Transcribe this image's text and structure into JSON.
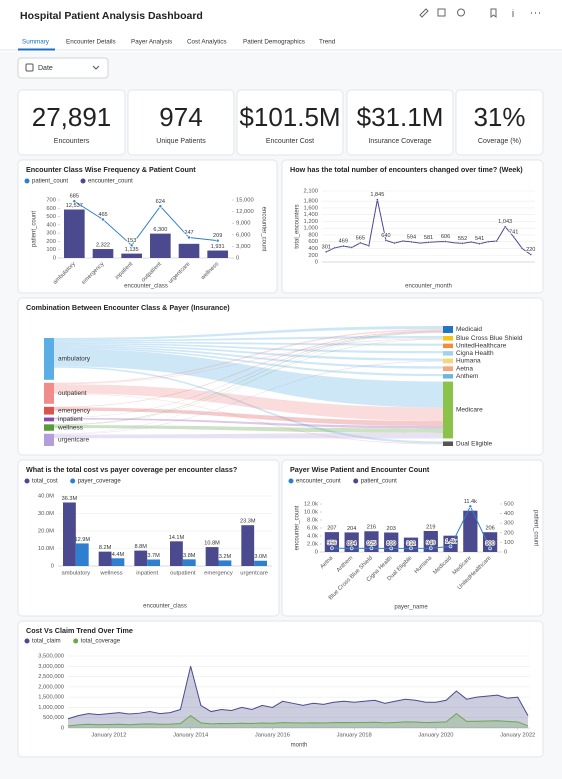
{
  "header": {
    "title": "Hospital Patient Analysis Dashboard"
  },
  "tabs": [
    "Summary",
    "Encounter Details",
    "Payer Analysis",
    "Cost Analytics",
    "Patient Demographics",
    "Trend"
  ],
  "filter": {
    "label": "Date"
  },
  "kpis": [
    {
      "value": "27,891",
      "label": "Encounters"
    },
    {
      "value": "974",
      "label": "Unique Patients"
    },
    {
      "value": "$101.5M",
      "label": "Encounter Cost"
    },
    {
      "value": "$31.1M",
      "label": "Insurance Coverage"
    },
    {
      "value": "31%",
      "label": "Coverage (%)"
    }
  ],
  "chart_data": [
    {
      "type": "bar",
      "title": "Encounter Class Wise Frequency & Patient Count",
      "categories": [
        "ambulatory",
        "emergency",
        "inpatient",
        "outpatient",
        "urgentcare",
        "wellness"
      ],
      "series": [
        {
          "name": "patient_count",
          "type": "line",
          "color": "#2f7fd0",
          "values": [
            685,
            465,
            153,
            624,
            247,
            209
          ],
          "value_labels": [
            "685",
            "465",
            "153",
            "624",
            "247",
            "209"
          ]
        },
        {
          "name": "encounter_count",
          "axis": "y2",
          "color": "#4b4a8f",
          "values": [
            12537,
            2322,
            1135,
            6300,
            3666,
            1931
          ],
          "value_labels": [
            "12,537",
            "2,322",
            "1,135",
            "6,300",
            null,
            "1,931"
          ]
        }
      ],
      "ylim": [
        0,
        700
      ],
      "yticks": [
        0,
        100,
        200,
        300,
        400,
        500,
        600,
        700
      ],
      "y2lim": [
        0,
        15000
      ],
      "y2ticks": [
        0,
        {
          "value": 3000,
          "label": "3,000"
        },
        {
          "value": 6000,
          "label": "6,000"
        },
        {
          "value": 9000,
          "label": "9,000"
        },
        {
          "value": 12000,
          "label": "12,000"
        },
        {
          "value": 15000,
          "label": "15,000"
        }
      ],
      "x_label": "encounter_class",
      "y_label": "patient_count",
      "y2_label": "encounter_count",
      "grid": false
    },
    {
      "type": "line",
      "title": "How has the total number of encounters changed over time? (Week)",
      "categories": [
        null,
        null,
        null,
        null,
        null,
        null,
        null,
        null,
        null,
        null,
        null,
        null,
        null,
        null,
        null,
        null,
        null,
        null,
        null,
        null,
        null,
        null,
        null,
        null,
        null
      ],
      "series": [
        {
          "name": "total_encounters",
          "color": "#4b4a8f",
          "values": [
            301,
            420,
            469,
            430,
            565,
            480,
            1845,
            640,
            560,
            620,
            594,
            560,
            581,
            600,
            606,
            570,
            552,
            590,
            541,
            600,
            620,
            1043,
            741,
            400,
            220
          ],
          "value_labels": [
            "301",
            null,
            "469",
            null,
            "565",
            null,
            "1,845",
            "640",
            null,
            null,
            "594",
            null,
            "581",
            null,
            "606",
            null,
            "552",
            null,
            "541",
            null,
            null,
            "1,043",
            "741",
            null,
            "220"
          ]
        }
      ],
      "ylim": [
        0,
        2100
      ],
      "yticks": [
        0,
        200,
        400,
        600,
        800,
        {
          "value": 1000,
          "label": "1,000"
        },
        {
          "value": 1200,
          "label": "1,200"
        },
        {
          "value": 1400,
          "label": "1,400"
        },
        {
          "value": 1600,
          "label": "1,600"
        },
        {
          "value": 1800,
          "label": "1,800"
        },
        {
          "value": 2100,
          "label": "2,100"
        }
      ],
      "x_label": "encounter_month",
      "y_label": "total_encounters",
      "grid": true
    },
    {
      "type": "sankey",
      "title": "Combination Between Encounter Class & Payer (Insurance)",
      "sources": [
        {
          "name": "ambulatory",
          "value": 12537,
          "color": "#5aaee3"
        },
        {
          "name": "outpatient",
          "value": 6300,
          "color": "#f08c8c"
        },
        {
          "name": "emergency",
          "value": 2322,
          "color": "#d9534f"
        },
        {
          "name": "inpatient",
          "value": 1135,
          "color": "#8e44ad"
        },
        {
          "name": "wellness",
          "value": 1931,
          "color": "#5a9a3a"
        },
        {
          "name": "urgentcare",
          "value": 3666,
          "color": "#b39ddb"
        }
      ],
      "targets": [
        {
          "name": "Medicaid",
          "value": 1400,
          "color": "#1f77c4"
        },
        {
          "name": "Blue Cross Blue Shield",
          "value": 925,
          "color": "#f5c518"
        },
        {
          "name": "UnitedHealthcare",
          "value": 900,
          "color": "#f08c3c"
        },
        {
          "name": "Cigna Health",
          "value": 899,
          "color": "#9fd4e8"
        },
        {
          "name": "Humana",
          "value": 949,
          "color": "#f7d774"
        },
        {
          "name": "Aetna",
          "value": 956,
          "color": "#f4a582"
        },
        {
          "name": "Anthem",
          "value": 894,
          "color": "#6bb8d6"
        },
        {
          "name": "Medicare",
          "value": 11400,
          "color": "#8bc34a"
        },
        {
          "name": "Dual Eligible",
          "value": 912,
          "color": "#555555"
        }
      ],
      "links": [
        {
          "source": "ambulatory",
          "target": "Medicaid",
          "value": 600
        },
        {
          "source": "ambulatory",
          "target": "Blue Cross Blue Shield",
          "value": 450
        },
        {
          "source": "ambulatory",
          "target": "UnitedHealthcare",
          "value": 430
        },
        {
          "source": "ambulatory",
          "target": "Cigna Health",
          "value": 440
        },
        {
          "source": "ambulatory",
          "target": "Humana",
          "value": 460
        },
        {
          "source": "ambulatory",
          "target": "Aetna",
          "value": 470
        },
        {
          "source": "ambulatory",
          "target": "Anthem",
          "value": 430
        },
        {
          "source": "ambulatory",
          "target": "Medicare",
          "value": 5200
        },
        {
          "source": "ambulatory",
          "target": "Dual Eligible",
          "value": 440
        },
        {
          "source": "outpatient",
          "target": "Medicaid",
          "value": 300
        },
        {
          "source": "outpatient",
          "target": "Blue Cross Blue Shield",
          "value": 150
        },
        {
          "source": "outpatient",
          "target": "Medicare",
          "value": 2700
        },
        {
          "source": "outpatient",
          "target": "Dual Eligible",
          "value": 150
        },
        {
          "source": "emergency",
          "target": "Medicaid",
          "value": 150
        },
        {
          "source": "emergency",
          "target": "Medicare",
          "value": 1000
        },
        {
          "source": "inpatient",
          "target": "Medicaid",
          "value": 100
        },
        {
          "source": "inpatient",
          "target": "Medicare",
          "value": 500
        },
        {
          "source": "wellness",
          "target": "Medicaid",
          "value": 150
        },
        {
          "source": "wellness",
          "target": "Blue Cross Blue Shield",
          "value": 100
        },
        {
          "source": "wellness",
          "target": "Medicare",
          "value": 900
        },
        {
          "source": "urgentcare",
          "target": "Medicaid",
          "value": 100
        },
        {
          "source": "urgentcare",
          "target": "Humana",
          "value": 150
        },
        {
          "source": "urgentcare",
          "target": "Medicare",
          "value": 1100
        }
      ]
    },
    {
      "type": "bar",
      "title": "What is the total cost vs payer coverage per encounter class?",
      "categories": [
        "ambulatory",
        "wellness",
        "inpatient",
        "outpatient",
        "emergency",
        "urgentcare"
      ],
      "series": [
        {
          "name": "total_cost",
          "color": "#4b4a8f",
          "values": [
            36300000,
            8200000,
            8800000,
            14100000,
            10800000,
            23300000
          ],
          "value_labels": [
            "36.3M",
            "8.2M",
            "8.8M",
            "14.1M",
            "10.8M",
            "23.3M"
          ]
        },
        {
          "name": "payer_coverage",
          "color": "#2f7fd0",
          "values": [
            12900000,
            4400000,
            3700000,
            3800000,
            3200000,
            3000000
          ],
          "value_labels": [
            "12.9M",
            "4.4M",
            "3.7M",
            "3.8M",
            "3.2M",
            "3.0M"
          ]
        }
      ],
      "ylim": [
        0,
        40000000
      ],
      "yticks": [
        0,
        {
          "value": 10000000,
          "label": "10.0M"
        },
        {
          "value": 20000000,
          "label": "20.0M"
        },
        {
          "value": 30000000,
          "label": "30.0M"
        },
        {
          "value": 40000000,
          "label": "40.0M"
        }
      ],
      "x_label": "encounter_class",
      "grid": true
    },
    {
      "type": "bar",
      "title": "Payer Wise Patient and Encounter Count",
      "categories": [
        "Aetna",
        "Anthem",
        "Blue Cross Blue Shield",
        "Cigna Health",
        "Dual Eligible",
        "Humana",
        "Medicaid",
        "Medicare",
        "UnitedHealthcare"
      ],
      "series": [
        {
          "name": "encounter_count",
          "type": "line",
          "color": "#2f7fd0",
          "values": [
            956,
            894,
            925,
            899,
            912,
            949,
            1400,
            11400,
            900
          ],
          "value_labels": [
            "956",
            "894",
            "925",
            "899",
            "912",
            "949",
            "1.4k",
            "11.4k",
            "900"
          ]
        },
        {
          "name": "patient_count",
          "axis": "y2",
          "color": "#4b4a8f",
          "values": [
            207,
            204,
            216,
            203,
            150,
            219,
            170,
            430,
            206
          ],
          "value_labels": [
            "207",
            "204",
            "216",
            "203",
            null,
            "219",
            null,
            null,
            "206"
          ]
        }
      ],
      "ylim": [
        0,
        12000
      ],
      "yticks": [
        0,
        {
          "value": 2000,
          "label": "2.0k"
        },
        {
          "value": 4000,
          "label": "4.0k"
        },
        {
          "value": 6000,
          "label": "6.0k"
        },
        {
          "value": 8000,
          "label": "8.0k"
        },
        {
          "value": 10000,
          "label": "10.0k"
        },
        {
          "value": 12000,
          "label": "12.0k"
        }
      ],
      "y2lim": [
        0,
        500
      ],
      "y2ticks": [
        0,
        100,
        200,
        300,
        400,
        500
      ],
      "x_label": "payer_name",
      "y_label": "encounter_count",
      "y2_label": "patient_count",
      "grid": false
    },
    {
      "type": "area",
      "title": "Cost Vs Claim Trend Over Time",
      "x": [
        2011,
        2011.25,
        2011.5,
        2011.75,
        2012,
        2012.25,
        2012.5,
        2012.75,
        2013,
        2013.25,
        2013.5,
        2013.75,
        2014,
        2014.25,
        2014.5,
        2014.75,
        2015,
        2015.25,
        2015.5,
        2015.75,
        2016,
        2016.25,
        2016.5,
        2016.75,
        2017,
        2017.25,
        2017.5,
        2017.75,
        2018,
        2018.25,
        2018.5,
        2018.75,
        2019,
        2019.25,
        2019.5,
        2019.75,
        2020,
        2020.25,
        2020.5,
        2020.75,
        2021,
        2021.25,
        2021.5,
        2021.75,
        2022,
        2022.25
      ],
      "series": [
        {
          "name": "total_claim",
          "color": "#4b4a8f",
          "values": [
            450000,
            600000,
            700000,
            650000,
            700000,
            750000,
            680000,
            720000,
            800000,
            700000,
            750000,
            900000,
            3000000,
            1100000,
            800000,
            900000,
            850000,
            1000000,
            900000,
            1100000,
            1000000,
            1300000,
            1200000,
            1100000,
            1200000,
            1150000,
            1250000,
            1300000,
            1250000,
            1300000,
            1350000,
            1200000,
            1300000,
            1400000,
            1350000,
            1250000,
            1250000,
            1350000,
            1800000,
            1400000,
            1500000,
            1550000,
            1600000,
            1450000,
            1500000,
            600000
          ]
        },
        {
          "name": "total_coverage",
          "color": "#6aa84f",
          "values": [
            100000,
            150000,
            180000,
            160000,
            170000,
            180000,
            160000,
            190000,
            200000,
            180000,
            190000,
            220000,
            600000,
            250000,
            200000,
            220000,
            210000,
            230000,
            220000,
            240000,
            230000,
            260000,
            250000,
            240000,
            250000,
            240000,
            260000,
            270000,
            260000,
            270000,
            280000,
            250000,
            270000,
            300000,
            290000,
            260000,
            280000,
            300000,
            700000,
            320000,
            330000,
            340000,
            350000,
            320000,
            300000,
            100000
          ]
        }
      ],
      "xlim": [
        2011,
        2022.3
      ],
      "xticks": [
        {
          "value": 2012,
          "label": "January 2012"
        },
        {
          "value": 2014,
          "label": "January 2014"
        },
        {
          "value": 2016,
          "label": "January 2016"
        },
        {
          "value": 2018,
          "label": "January 2018"
        },
        {
          "value": 2020,
          "label": "January 2020"
        },
        {
          "value": 2022,
          "label": "January 2022"
        }
      ],
      "ylim": [
        0,
        3500000
      ],
      "yticks": [
        0,
        {
          "value": 500000,
          "label": "500,000"
        },
        {
          "value": 1000000,
          "label": "1,000,000"
        },
        {
          "value": 1500000,
          "label": "1,500,000"
        },
        {
          "value": 2000000,
          "label": "2,000,000"
        },
        {
          "value": 2500000,
          "label": "2,500,000"
        },
        {
          "value": 3000000,
          "label": "3,000,000"
        },
        {
          "value": 3500000,
          "label": "3,500,000"
        }
      ],
      "x_label": "month",
      "grid": true
    }
  ]
}
